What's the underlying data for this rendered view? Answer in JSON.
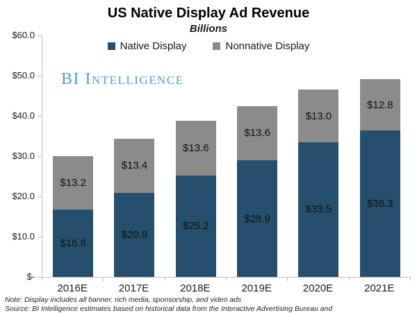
{
  "title": "US Native Display Ad Revenue",
  "subtitle": "Billions",
  "watermark": "BI Intelligence",
  "legend": [
    {
      "label": "Native Display",
      "color": "#254F6D"
    },
    {
      "label": "Nonnative Display",
      "color": "#8B8B8B"
    }
  ],
  "chart_data": {
    "type": "bar",
    "stacked": true,
    "title": "US Native Display Ad Revenue",
    "subtitle": "Billions",
    "categories": [
      "2016E",
      "2017E",
      "2018E",
      "2019E",
      "2020E",
      "2021E"
    ],
    "series": [
      {
        "name": "Native Display",
        "color": "#254F6D",
        "values": [
          16.8,
          20.9,
          25.2,
          28.9,
          33.5,
          36.3
        ],
        "labels": [
          "$16.8",
          "$20.9",
          "$25.2",
          "$28.9",
          "$33.5",
          "$36.3"
        ]
      },
      {
        "name": "Nonnative Display",
        "color": "#8B8B8B",
        "values": [
          13.2,
          13.4,
          13.6,
          13.6,
          13.0,
          12.8
        ],
        "labels": [
          "$13.2",
          "$13.4",
          "$13.6",
          "$13.6",
          "$13.0",
          "$12.8"
        ]
      }
    ],
    "totals": [
      30.0,
      34.3,
      38.8,
      42.5,
      46.5,
      49.1
    ],
    "y_axis": {
      "min": 0,
      "max": 60,
      "tick_interval": 10,
      "tick_labels": [
        "$-",
        "$10.0",
        "$20.0",
        "$30.0",
        "$40.0",
        "$50.0",
        "$60.0"
      ]
    },
    "grid": false,
    "legend_position": "top",
    "axis_color": "#BFBFBF"
  },
  "notes": {
    "note": "Note: Display includes all banner, rich media, sponsorship, and video ads",
    "source": "Source: BI Intelligence estimates based on historical data from the Interactive Advertising Bureau and PricewaterhouseCoopers, and IHS"
  }
}
